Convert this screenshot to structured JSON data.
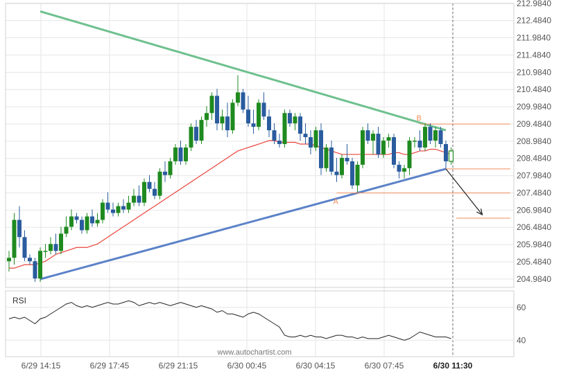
{
  "watermark": "www.autochartist.com",
  "rsi_label": "RSI",
  "colors": {
    "bull": "#1f8a1f",
    "bear": "#2a5c9e",
    "upper_trendline": "#6ec08e",
    "lower_trendline": "#5b82c8",
    "moving_average": "#e8443a",
    "level_lines": "#f08c5a",
    "rsi_line": "#222222",
    "grid": "#e6e6e6",
    "axis_text": "#555555"
  },
  "chart_data": {
    "type": "candlestick",
    "price_axis": {
      "ticks": [
        "212.9840",
        "212.4840",
        "211.9840",
        "211.4840",
        "210.9840",
        "210.4840",
        "209.9840",
        "209.4840",
        "208.9840",
        "208.4840",
        "207.9840",
        "207.4840",
        "206.9840",
        "206.4840",
        "205.9840",
        "205.4840",
        "204.9840"
      ],
      "range": [
        204.74,
        212.98
      ]
    },
    "time_axis": {
      "ticks": [
        "6/29 14:15",
        "6/29 17:45",
        "6/29 21:15",
        "6/30 00:45",
        "6/30 04:15",
        "6/30 07:45",
        "6/30 11:30"
      ],
      "highlight": "6/30 11:30"
    },
    "rsi_axis": {
      "ticks": [
        "60",
        "40"
      ],
      "range": [
        30,
        70
      ]
    },
    "candles_ohlc": [
      [
        205.5,
        205.8,
        205.2,
        205.6
      ],
      [
        205.6,
        206.9,
        205.4,
        206.7
      ],
      [
        206.7,
        207.1,
        205.9,
        206.2
      ],
      [
        206.2,
        206.4,
        205.5,
        205.6
      ],
      [
        205.6,
        205.7,
        205.4,
        205.5
      ],
      [
        205.5,
        205.6,
        204.9,
        205.0
      ],
      [
        205.0,
        205.9,
        204.9,
        205.8
      ],
      [
        205.8,
        206.0,
        205.6,
        205.8
      ],
      [
        205.8,
        206.2,
        205.7,
        206.0
      ],
      [
        206.0,
        206.3,
        205.7,
        205.8
      ],
      [
        205.8,
        206.5,
        205.7,
        206.3
      ],
      [
        206.3,
        206.8,
        206.2,
        206.5
      ],
      [
        206.5,
        207.0,
        206.4,
        206.8
      ],
      [
        206.8,
        206.9,
        206.6,
        206.7
      ],
      [
        206.7,
        206.8,
        206.3,
        206.4
      ],
      [
        206.4,
        206.9,
        206.3,
        206.8
      ],
      [
        206.8,
        207.0,
        206.5,
        206.6
      ],
      [
        206.6,
        206.9,
        206.5,
        206.7
      ],
      [
        206.7,
        207.3,
        206.6,
        207.2
      ],
      [
        207.2,
        207.5,
        206.9,
        207.0
      ],
      [
        207.0,
        207.2,
        206.8,
        206.9
      ],
      [
        206.9,
        207.2,
        206.8,
        207.1
      ],
      [
        207.1,
        207.3,
        206.9,
        207.0
      ],
      [
        207.0,
        207.4,
        206.9,
        207.2
      ],
      [
        207.2,
        207.6,
        207.1,
        207.4
      ],
      [
        207.4,
        207.7,
        207.1,
        207.2
      ],
      [
        207.2,
        207.9,
        207.1,
        207.8
      ],
      [
        207.8,
        208.0,
        207.5,
        207.6
      ],
      [
        207.6,
        207.8,
        207.3,
        207.4
      ],
      [
        207.4,
        208.2,
        207.3,
        208.1
      ],
      [
        208.1,
        208.4,
        207.8,
        208.0
      ],
      [
        208.0,
        208.5,
        207.9,
        208.4
      ],
      [
        208.4,
        208.9,
        208.3,
        208.8
      ],
      [
        208.8,
        209.0,
        208.3,
        208.4
      ],
      [
        208.4,
        208.9,
        208.3,
        208.8
      ],
      [
        208.8,
        209.5,
        208.7,
        209.4
      ],
      [
        209.4,
        209.6,
        208.9,
        209.0
      ],
      [
        209.0,
        209.7,
        208.9,
        209.6
      ],
      [
        209.6,
        210.0,
        209.4,
        209.8
      ],
      [
        209.8,
        210.4,
        209.6,
        210.3
      ],
      [
        210.3,
        210.5,
        209.3,
        209.5
      ],
      [
        209.5,
        209.9,
        209.3,
        209.7
      ],
      [
        209.7,
        210.1,
        209.1,
        209.3
      ],
      [
        209.3,
        210.2,
        209.2,
        210.1
      ],
      [
        210.1,
        210.9,
        210.0,
        210.4
      ],
      [
        210.4,
        210.5,
        209.8,
        209.9
      ],
      [
        209.9,
        210.3,
        209.4,
        209.5
      ],
      [
        209.5,
        209.9,
        209.2,
        209.4
      ],
      [
        209.4,
        210.2,
        209.3,
        210.1
      ],
      [
        210.1,
        210.4,
        209.6,
        209.7
      ],
      [
        209.7,
        209.9,
        209.1,
        209.3
      ],
      [
        209.3,
        209.5,
        208.9,
        209.0
      ],
      [
        209.0,
        209.2,
        208.8,
        208.9
      ],
      [
        208.9,
        209.9,
        208.8,
        209.8
      ],
      [
        209.8,
        209.9,
        209.4,
        209.5
      ],
      [
        209.5,
        209.8,
        209.3,
        209.7
      ],
      [
        209.7,
        209.8,
        209.0,
        209.2
      ],
      [
        209.2,
        209.5,
        208.9,
        209.1
      ],
      [
        209.1,
        209.3,
        208.6,
        208.8
      ],
      [
        208.8,
        209.4,
        208.7,
        209.3
      ],
      [
        209.3,
        209.5,
        208.0,
        208.2
      ],
      [
        208.2,
        208.9,
        208.1,
        208.8
      ],
      [
        208.8,
        209.0,
        208.0,
        208.1
      ],
      [
        208.1,
        208.5,
        207.8,
        208.0
      ],
      [
        208.0,
        208.6,
        207.9,
        208.5
      ],
      [
        208.5,
        208.9,
        208.3,
        208.4
      ],
      [
        208.4,
        208.5,
        207.6,
        207.7
      ],
      [
        207.7,
        208.4,
        207.5,
        208.3
      ],
      [
        208.3,
        209.4,
        208.2,
        209.3
      ],
      [
        209.3,
        209.5,
        208.9,
        209.0
      ],
      [
        209.0,
        209.3,
        208.6,
        209.2
      ],
      [
        209.2,
        209.4,
        208.5,
        208.6
      ],
      [
        208.6,
        209.1,
        208.5,
        209.0
      ],
      [
        209.0,
        209.2,
        208.8,
        209.1
      ],
      [
        209.1,
        209.2,
        208.2,
        208.3
      ],
      [
        208.3,
        208.4,
        207.9,
        208.1
      ],
      [
        208.1,
        208.3,
        207.9,
        208.2
      ],
      [
        208.2,
        209.1,
        208.0,
        209.0
      ],
      [
        209.0,
        209.1,
        208.8,
        209.0
      ],
      [
        209.0,
        209.3,
        208.7,
        208.8
      ],
      [
        208.8,
        209.5,
        208.7,
        209.4
      ],
      [
        209.4,
        209.5,
        208.9,
        209.0
      ],
      [
        209.0,
        209.4,
        208.8,
        209.3
      ],
      [
        209.3,
        209.4,
        208.8,
        208.9
      ],
      [
        208.9,
        209.0,
        208.2,
        208.4
      ],
      [
        208.4,
        208.8,
        208.3,
        208.7
      ]
    ],
    "moving_average": [
      205.3,
      205.3,
      205.35,
      205.4,
      205.4,
      205.4,
      205.45,
      205.5,
      205.6,
      205.7,
      205.75,
      205.8,
      205.85,
      205.9,
      205.9,
      205.9,
      205.95,
      206.0,
      206.1,
      206.2,
      206.3,
      206.4,
      206.5,
      206.6,
      206.7,
      206.8,
      206.9,
      207.0,
      207.1,
      207.2,
      207.3,
      207.4,
      207.5,
      207.6,
      207.7,
      207.8,
      207.9,
      208.0,
      208.1,
      208.2,
      208.3,
      208.4,
      208.5,
      208.6,
      208.7,
      208.75,
      208.8,
      208.85,
      208.9,
      208.95,
      209.0,
      209.0,
      208.95,
      208.95,
      208.95,
      208.95,
      208.9,
      208.9,
      208.9,
      208.85,
      208.8,
      208.75,
      208.7,
      208.65,
      208.6,
      208.6,
      208.6,
      208.6,
      208.6,
      208.6,
      208.6,
      208.6,
      208.6,
      208.6,
      208.65,
      208.65,
      208.6,
      208.6,
      208.65,
      208.7,
      208.7,
      208.75,
      208.75,
      208.7,
      208.65,
      208.6
    ],
    "rsi": [
      53,
      54,
      53,
      54,
      52,
      50,
      53,
      54,
      56,
      58,
      60,
      62,
      63,
      61,
      60,
      61,
      60,
      61,
      62,
      63,
      62,
      62,
      63,
      64,
      63,
      61,
      62,
      63,
      62,
      63,
      62,
      61,
      62,
      63,
      62,
      61,
      60,
      61,
      60,
      59,
      57,
      58,
      56,
      56,
      55,
      54,
      56,
      57,
      56,
      54,
      52,
      50,
      48,
      43,
      42,
      42,
      43,
      42,
      43,
      42,
      42,
      41,
      42,
      43,
      43,
      42,
      42,
      41,
      42,
      41,
      41,
      41,
      42,
      43,
      42,
      41,
      40,
      41,
      43,
      45,
      44,
      43,
      42,
      42,
      42,
      41
    ],
    "trendlines": [
      {
        "role": "resistance",
        "from": {
          "candle": 6,
          "price": 212.75
        },
        "to": {
          "candle": 84,
          "price": 209.3
        }
      },
      {
        "role": "support",
        "from": {
          "candle": 6,
          "price": 204.98
        },
        "to": {
          "candle": 84,
          "price": 208.18
        }
      }
    ],
    "levels": [
      {
        "price": 209.48,
        "label": "B",
        "from_candle": 79
      },
      {
        "price": 208.18,
        "label": "",
        "from_candle": 84
      },
      {
        "price": 207.48,
        "label": "A",
        "from_candle": 63
      },
      {
        "price": 206.75,
        "label": "",
        "from_candle": 86
      }
    ],
    "forecast": {
      "from": {
        "candle": 84,
        "price": 208.18
      },
      "to": {
        "candle": 91,
        "price": 206.85
      }
    }
  }
}
